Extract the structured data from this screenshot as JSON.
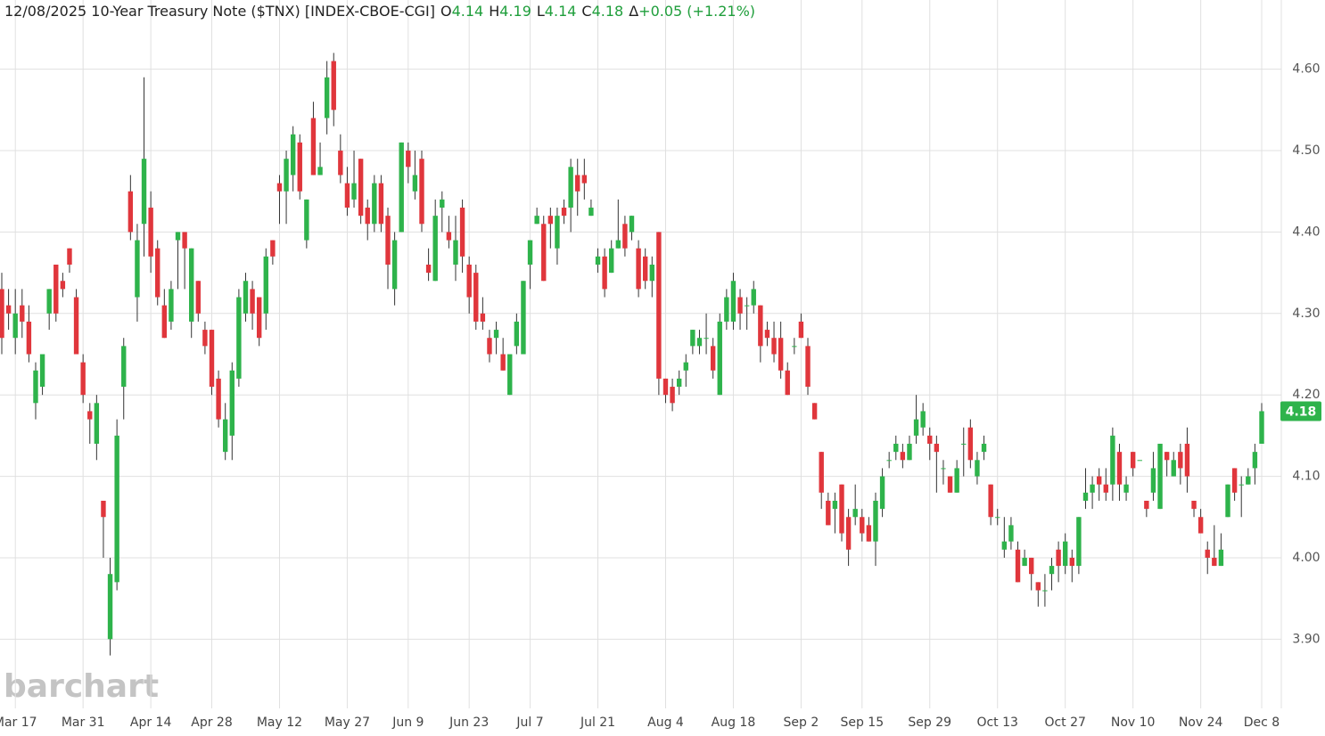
{
  "header": {
    "title": "12/08/2025 10-Year Treasury Note ($TNX) [INDEX-CBOE-CGI]",
    "o": "O",
    "h": "H",
    "l": "L",
    "c": "C",
    "delta": "Δ",
    "change": "+0.05 (+1.21%)"
  },
  "watermark": "barchart",
  "chart_data": {
    "type": "candlestick",
    "categories": [
      null,
      null,
      "Mar 17",
      null,
      null,
      null,
      null,
      null,
      null,
      null,
      null,
      null,
      "Mar 31",
      null,
      null,
      null,
      null,
      null,
      null,
      null,
      null,
      null,
      "Apr 14",
      null,
      null,
      null,
      null,
      null,
      null,
      null,
      null,
      "Apr 28",
      null,
      null,
      null,
      null,
      null,
      null,
      null,
      null,
      null,
      "May 12",
      null,
      null,
      null,
      null,
      null,
      null,
      null,
      null,
      null,
      "May 27",
      null,
      null,
      null,
      null,
      null,
      null,
      null,
      null,
      "Jun 9",
      null,
      null,
      null,
      null,
      null,
      null,
      null,
      null,
      "Jun 23",
      null,
      null,
      null,
      null,
      null,
      null,
      null,
      null,
      "Jul 7",
      null,
      null,
      null,
      null,
      null,
      null,
      null,
      null,
      null,
      "Jul 21",
      null,
      null,
      null,
      null,
      null,
      null,
      null,
      null,
      null,
      "Aug 4",
      null,
      null,
      null,
      null,
      null,
      null,
      null,
      null,
      null,
      "Aug 18",
      null,
      null,
      null,
      null,
      null,
      null,
      null,
      null,
      null,
      "Sep 2",
      null,
      null,
      null,
      null,
      null,
      null,
      null,
      null,
      "Sep 15",
      null,
      null,
      null,
      null,
      null,
      null,
      null,
      null,
      null,
      "Sep 29",
      null,
      null,
      null,
      null,
      null,
      null,
      null,
      null,
      null,
      "Oct 13",
      null,
      null,
      null,
      null,
      null,
      null,
      null,
      null,
      null,
      "Oct 27",
      null,
      null,
      null,
      null,
      null,
      null,
      null,
      null,
      null,
      "Nov 10",
      null,
      null,
      null,
      null,
      null,
      null,
      null,
      null,
      null,
      "Nov 24",
      null,
      null,
      null,
      null,
      null,
      null,
      null,
      null,
      "Dec 8"
    ],
    "open": [
      4.33,
      4.31,
      4.27,
      4.31,
      4.29,
      4.19,
      4.21,
      4.3,
      4.36,
      4.34,
      4.38,
      4.32,
      4.24,
      4.18,
      4.14,
      4.07,
      3.9,
      3.97,
      4.21,
      4.45,
      4.32,
      4.41,
      4.43,
      4.38,
      4.31,
      4.29,
      4.39,
      4.4,
      4.29,
      4.34,
      4.28,
      4.28,
      4.22,
      4.13,
      4.15,
      4.22,
      4.3,
      4.33,
      4.32,
      4.3,
      4.39,
      4.46,
      4.45,
      4.47,
      4.51,
      4.39,
      4.54,
      4.47,
      4.54,
      4.61,
      4.5,
      4.46,
      4.44,
      4.49,
      4.43,
      4.41,
      4.46,
      4.42,
      4.33,
      4.4,
      4.5,
      4.45,
      4.49,
      4.36,
      4.34,
      4.43,
      4.4,
      4.36,
      4.43,
      4.36,
      4.35,
      4.3,
      4.27,
      4.27,
      4.25,
      4.2,
      4.26,
      4.25,
      4.36,
      4.41,
      4.41,
      4.42,
      4.38,
      4.43,
      4.43,
      4.47,
      4.47,
      4.42,
      4.36,
      4.37,
      4.35,
      4.38,
      4.41,
      4.4,
      4.38,
      4.37,
      4.34,
      4.4,
      4.22,
      4.21,
      4.21,
      4.23,
      4.26,
      4.26,
      4.27,
      4.26,
      4.2,
      4.29,
      4.29,
      4.32,
      4.31,
      4.31,
      4.31,
      4.28,
      4.27,
      4.27,
      4.23,
      4.26,
      4.29,
      4.26,
      4.19,
      4.13,
      4.07,
      4.06,
      4.09,
      4.05,
      4.05,
      4.05,
      4.04,
      4.02,
      4.06,
      4.12,
      4.13,
      4.13,
      4.12,
      4.15,
      4.16,
      4.15,
      4.14,
      4.11,
      4.1,
      4.08,
      4.14,
      4.16,
      4.1,
      4.13,
      4.09,
      4.05,
      4.01,
      4.02,
      4.01,
      3.99,
      4.0,
      3.97,
      3.96,
      3.98,
      4.01,
      3.99,
      4.0,
      3.99,
      4.07,
      4.08,
      4.1,
      4.09,
      4.09,
      4.13,
      4.08,
      4.13,
      4.12,
      4.07,
      4.08,
      4.06,
      4.13,
      4.1,
      4.13,
      4.14,
      4.07,
      4.05,
      4.01,
      4.0,
      3.99,
      4.05,
      4.11,
      4.09,
      4.09,
      4.11,
      4.14
    ],
    "high": [
      4.35,
      4.33,
      4.33,
      4.33,
      4.31,
      4.24,
      4.25,
      4.33,
      4.36,
      4.35,
      4.38,
      4.33,
      4.25,
      4.19,
      4.2,
      4.07,
      4.0,
      4.17,
      4.27,
      4.47,
      4.41,
      4.59,
      4.45,
      4.39,
      4.33,
      4.34,
      4.4,
      4.4,
      4.38,
      4.34,
      4.29,
      4.28,
      4.23,
      4.19,
      4.24,
      4.33,
      4.35,
      4.34,
      4.32,
      4.38,
      4.39,
      4.47,
      4.5,
      4.53,
      4.52,
      4.44,
      4.56,
      4.51,
      4.61,
      4.62,
      4.52,
      4.48,
      4.5,
      4.49,
      4.44,
      4.47,
      4.47,
      4.43,
      4.4,
      4.51,
      4.51,
      4.5,
      4.5,
      4.38,
      4.44,
      4.45,
      4.42,
      4.42,
      4.44,
      4.37,
      4.36,
      4.32,
      4.28,
      4.29,
      4.27,
      4.25,
      4.3,
      4.34,
      4.39,
      4.43,
      4.42,
      4.43,
      4.43,
      4.44,
      4.49,
      4.49,
      4.49,
      4.44,
      4.38,
      4.38,
      4.39,
      4.44,
      4.42,
      4.42,
      4.39,
      4.38,
      4.37,
      4.4,
      4.22,
      4.22,
      4.23,
      4.25,
      4.28,
      4.28,
      4.3,
      4.27,
      4.3,
      4.33,
      4.35,
      4.33,
      4.32,
      4.34,
      4.31,
      4.29,
      4.29,
      4.29,
      4.24,
      4.27,
      4.3,
      4.27,
      4.19,
      4.13,
      4.08,
      4.08,
      4.09,
      4.06,
      4.09,
      4.06,
      4.05,
      4.08,
      4.11,
      4.13,
      4.15,
      4.14,
      4.15,
      4.2,
      4.19,
      4.16,
      4.15,
      4.12,
      4.1,
      4.12,
      4.16,
      4.17,
      4.13,
      4.15,
      4.09,
      4.06,
      4.05,
      4.05,
      4.02,
      4.01,
      4.0,
      3.97,
      3.98,
      4.0,
      4.02,
      4.03,
      4.01,
      4.05,
      4.11,
      4.1,
      4.11,
      4.11,
      4.16,
      4.14,
      4.1,
      4.13,
      4.12,
      4.07,
      4.13,
      4.14,
      4.13,
      4.13,
      4.14,
      4.16,
      4.07,
      4.06,
      4.02,
      4.04,
      4.03,
      4.09,
      4.11,
      4.1,
      4.11,
      4.14,
      4.19
    ],
    "low": [
      4.25,
      4.28,
      4.25,
      4.27,
      4.24,
      4.17,
      4.2,
      4.28,
      4.29,
      4.32,
      4.35,
      4.25,
      4.19,
      4.14,
      4.12,
      4.0,
      3.88,
      3.96,
      4.17,
      4.39,
      4.29,
      4.37,
      4.35,
      4.31,
      4.27,
      4.28,
      4.33,
      4.33,
      4.27,
      4.29,
      4.25,
      4.2,
      4.16,
      4.12,
      4.12,
      4.21,
      4.29,
      4.28,
      4.26,
      4.28,
      4.36,
      4.41,
      4.41,
      4.45,
      4.44,
      4.38,
      4.47,
      4.47,
      4.52,
      4.53,
      4.46,
      4.42,
      4.43,
      4.41,
      4.39,
      4.4,
      4.4,
      4.33,
      4.31,
      4.4,
      4.46,
      4.44,
      4.4,
      4.34,
      4.34,
      4.4,
      4.38,
      4.34,
      4.35,
      4.3,
      4.28,
      4.28,
      4.24,
      4.25,
      4.23,
      4.2,
      4.25,
      4.25,
      4.33,
      4.41,
      4.34,
      4.38,
      4.36,
      4.41,
      4.4,
      4.42,
      4.44,
      4.42,
      4.35,
      4.32,
      4.35,
      4.38,
      4.37,
      4.39,
      4.32,
      4.33,
      4.32,
      4.2,
      4.19,
      4.18,
      4.2,
      4.21,
      4.25,
      4.25,
      4.25,
      4.22,
      4.2,
      4.28,
      4.28,
      4.28,
      4.28,
      4.3,
      4.24,
      4.26,
      4.24,
      4.22,
      4.2,
      4.25,
      4.27,
      4.2,
      4.17,
      4.06,
      4.04,
      4.03,
      4.02,
      3.99,
      4.04,
      4.02,
      4.02,
      3.99,
      4.05,
      4.11,
      4.12,
      4.11,
      4.12,
      4.14,
      4.15,
      4.12,
      4.08,
      4.09,
      4.08,
      4.08,
      4.1,
      4.11,
      4.09,
      4.12,
      4.04,
      4.04,
      4.0,
      4.01,
      3.97,
      3.99,
      3.96,
      3.94,
      3.94,
      3.96,
      3.97,
      3.98,
      3.97,
      3.98,
      4.06,
      4.06,
      4.07,
      4.07,
      4.07,
      4.07,
      4.07,
      4.1,
      4.12,
      4.05,
      4.07,
      4.06,
      4.1,
      4.1,
      4.09,
      4.08,
      4.05,
      4.03,
      3.98,
      3.99,
      3.99,
      4.05,
      4.07,
      4.05,
      4.09,
      4.09,
      4.14
    ],
    "close": [
      4.27,
      4.3,
      4.3,
      4.29,
      4.25,
      4.23,
      4.25,
      4.33,
      4.3,
      4.33,
      4.36,
      4.25,
      4.2,
      4.17,
      4.19,
      4.05,
      3.98,
      4.15,
      4.26,
      4.4,
      4.39,
      4.49,
      4.37,
      4.32,
      4.27,
      4.33,
      4.4,
      4.38,
      4.38,
      4.3,
      4.26,
      4.21,
      4.17,
      4.17,
      4.23,
      4.32,
      4.34,
      4.3,
      4.27,
      4.37,
      4.37,
      4.45,
      4.49,
      4.52,
      4.45,
      4.44,
      4.47,
      4.48,
      4.59,
      4.55,
      4.47,
      4.43,
      4.46,
      4.42,
      4.41,
      4.46,
      4.41,
      4.36,
      4.39,
      4.51,
      4.48,
      4.47,
      4.41,
      4.35,
      4.42,
      4.44,
      4.39,
      4.39,
      4.37,
      4.32,
      4.29,
      4.29,
      4.25,
      4.28,
      4.23,
      4.25,
      4.29,
      4.34,
      4.39,
      4.42,
      4.34,
      4.41,
      4.42,
      4.42,
      4.48,
      4.45,
      4.46,
      4.43,
      4.37,
      4.33,
      4.38,
      4.39,
      4.38,
      4.42,
      4.33,
      4.34,
      4.36,
      4.22,
      4.2,
      4.19,
      4.22,
      4.24,
      4.28,
      4.27,
      4.27,
      4.23,
      4.29,
      4.32,
      4.34,
      4.3,
      4.31,
      4.33,
      4.26,
      4.27,
      4.25,
      4.23,
      4.2,
      4.26,
      4.27,
      4.21,
      4.17,
      4.08,
      4.04,
      4.07,
      4.03,
      4.01,
      4.06,
      4.03,
      4.02,
      4.07,
      4.1,
      4.12,
      4.14,
      4.12,
      4.14,
      4.17,
      4.18,
      4.14,
      4.13,
      4.11,
      4.08,
      4.11,
      4.14,
      4.12,
      4.12,
      4.14,
      4.05,
      4.05,
      4.02,
      4.04,
      3.97,
      4.0,
      3.98,
      3.96,
      3.96,
      3.99,
      3.99,
      4.02,
      3.99,
      4.05,
      4.08,
      4.09,
      4.09,
      4.08,
      4.15,
      4.09,
      4.09,
      4.11,
      4.12,
      4.06,
      4.11,
      4.14,
      4.12,
      4.12,
      4.11,
      4.1,
      4.06,
      4.03,
      4.0,
      3.99,
      4.01,
      4.09,
      4.08,
      4.09,
      4.1,
      4.13,
      4.18
    ],
    "up_color": "#2eb34b",
    "down_color": "#e0363c",
    "ylim": [
      3.815,
      4.685
    ],
    "yticks": [
      {
        "value": 3.9,
        "label": "3.90"
      },
      {
        "value": 4.0,
        "label": "4.00"
      },
      {
        "value": 4.1,
        "label": "4.10"
      },
      {
        "value": 4.2,
        "label": "4.20"
      },
      {
        "value": 4.3,
        "label": "4.30"
      },
      {
        "value": 4.4,
        "label": "4.40"
      },
      {
        "value": 4.5,
        "label": "4.50"
      },
      {
        "value": 4.6,
        "label": "4.60"
      }
    ],
    "grid": true
  }
}
